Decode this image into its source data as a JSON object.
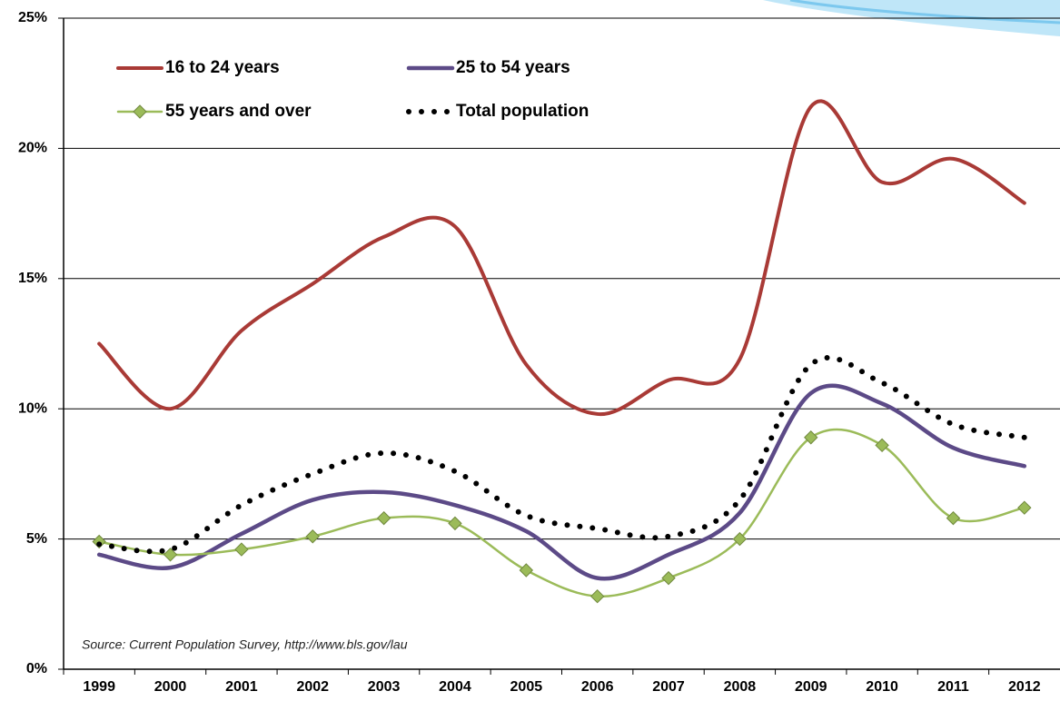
{
  "chart_data": {
    "type": "line",
    "categories": [
      "1999",
      "2000",
      "2001",
      "2002",
      "2003",
      "2004",
      "2005",
      "2006",
      "2007",
      "2008",
      "2009",
      "2010",
      "2011",
      "2012"
    ],
    "series": [
      {
        "name": "16 to 24 years",
        "color": "#a93a36",
        "values": [
          12.5,
          10.0,
          13.0,
          14.8,
          16.6,
          17.0,
          11.7,
          9.8,
          11.1,
          11.9,
          21.6,
          18.7,
          19.6,
          17.9
        ]
      },
      {
        "name": "25 to 54 years",
        "color": "#5c4a87",
        "values": [
          4.4,
          3.9,
          5.2,
          6.5,
          6.8,
          6.3,
          5.3,
          3.5,
          4.4,
          6.0,
          10.6,
          10.2,
          8.5,
          7.8
        ]
      },
      {
        "name": "55 years and over",
        "color": "#9bbb59",
        "values": [
          4.9,
          4.4,
          4.6,
          5.1,
          5.8,
          5.6,
          3.8,
          2.8,
          3.5,
          5.0,
          8.9,
          8.6,
          5.8,
          6.2
        ]
      },
      {
        "name": "Total population",
        "color": "#000000",
        "values": [
          4.8,
          4.6,
          6.3,
          7.5,
          8.3,
          7.6,
          5.9,
          5.4,
          5.1,
          6.5,
          11.7,
          11.0,
          9.4,
          8.9
        ]
      }
    ],
    "ylim": [
      0,
      25
    ],
    "yticks": [
      {
        "value": 0,
        "label": "0%"
      },
      {
        "value": 5,
        "label": "5%"
      },
      {
        "value": 10,
        "label": "10%"
      },
      {
        "value": 15,
        "label": "15%"
      },
      {
        "value": 20,
        "label": "20%"
      },
      {
        "value": 25,
        "label": "25%"
      }
    ],
    "grid": true,
    "legend": "top-left",
    "annotation": "Source:  Current Population Survey,  http://www.bls.gov/lau"
  }
}
